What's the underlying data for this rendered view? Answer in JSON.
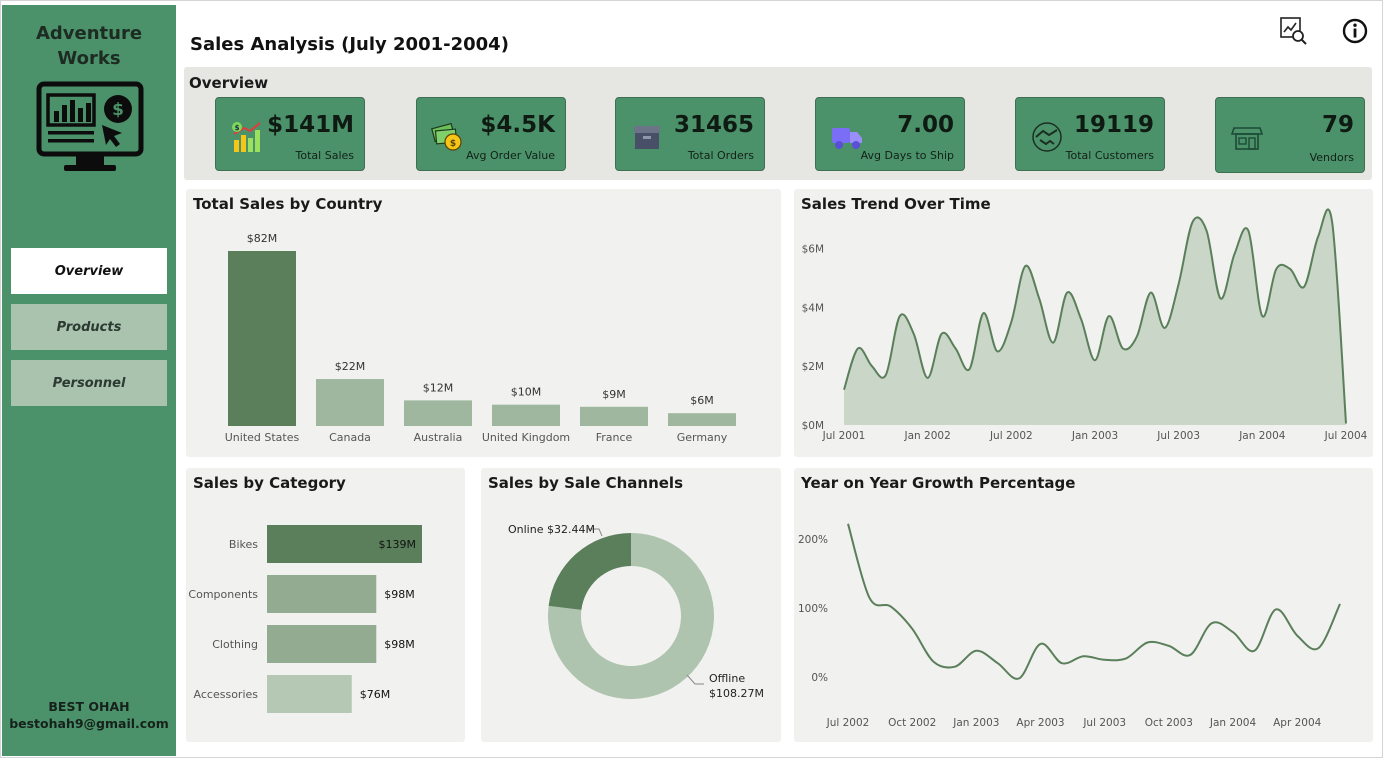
{
  "sidebar": {
    "brand_line1": "Adventure",
    "brand_line2": "Works",
    "nav": [
      {
        "label": "Overview",
        "active": true
      },
      {
        "label": "Products",
        "active": false
      },
      {
        "label": "Personnel",
        "active": false
      }
    ],
    "author_name": "BEST OHAH",
    "author_email": "bestohah9@gmail.com"
  },
  "header": {
    "title": "Sales Analysis (July 2001-2004)",
    "icons": [
      "analytics-search-icon",
      "info-icon"
    ]
  },
  "overview": {
    "title": "Overview",
    "kpis": [
      {
        "value": "$141M",
        "label": "Total Sales",
        "icon": "sales-growth-icon"
      },
      {
        "value": "$4.5K",
        "label": "Avg Order Value",
        "icon": "money-coins-icon"
      },
      {
        "value": "31465",
        "label": "Total Orders",
        "icon": "box-icon"
      },
      {
        "value": "7.00",
        "label": "Avg Days to Ship",
        "icon": "truck-icon"
      },
      {
        "value": "19119",
        "label": "Total Customers",
        "icon": "handshake-icon"
      },
      {
        "value": "79",
        "label": "Vendors",
        "icon": "store-icon"
      }
    ]
  },
  "colors": {
    "sidebar": "#4b926a",
    "accent_dark": "#5a7f5a",
    "accent_light": "#9eb79e",
    "area_fill": "#c9d6c8",
    "panel_bg": "#f1f1ef"
  },
  "chart_data": [
    {
      "type": "bar",
      "title": "Total Sales by Country",
      "categories": [
        "United States",
        "Canada",
        "Australia",
        "United Kingdom",
        "France",
        "Germany"
      ],
      "values": [
        82,
        22,
        12,
        10,
        9,
        6
      ],
      "data_labels": [
        "$82M",
        "$22M",
        "$12M",
        "$10M",
        "$9M",
        "$6M"
      ],
      "highlight_index": 0,
      "ylim": [
        0,
        82
      ]
    },
    {
      "type": "area",
      "title": "Sales Trend Over Time",
      "x_ticks": [
        "Jul 2001",
        "Jan 2002",
        "Jul 2002",
        "Jan 2003",
        "Jul 2003",
        "Jan 2004",
        "Jul 2004"
      ],
      "y_ticks": [
        "$0M",
        "$2M",
        "$4M",
        "$6M"
      ],
      "ylim": [
        0,
        7
      ],
      "y_unit": "$M",
      "x": [
        "Jul 2001",
        "Aug 2001",
        "Sep 2001",
        "Oct 2001",
        "Nov 2001",
        "Dec 2001",
        "Jan 2002",
        "Feb 2002",
        "Mar 2002",
        "Apr 2002",
        "May 2002",
        "Jun 2002",
        "Jul 2002",
        "Aug 2002",
        "Sep 2002",
        "Oct 2002",
        "Nov 2002",
        "Dec 2002",
        "Jan 2003",
        "Feb 2003",
        "Mar 2003",
        "Apr 2003",
        "May 2003",
        "Jun 2003",
        "Jul 2003",
        "Aug 2003",
        "Sep 2003",
        "Oct 2003",
        "Nov 2003",
        "Dec 2003",
        "Jan 2004",
        "Feb 2004",
        "Mar 2004",
        "Apr 2004",
        "May 2004",
        "Jun 2004",
        "Jul 2004"
      ],
      "values": [
        1.2,
        2.6,
        2.0,
        1.7,
        3.7,
        3.1,
        1.6,
        3.1,
        2.6,
        1.9,
        3.8,
        2.5,
        3.5,
        5.4,
        4.3,
        2.8,
        4.5,
        3.6,
        2.2,
        3.7,
        2.6,
        3.0,
        4.5,
        3.3,
        4.8,
        6.9,
        6.6,
        4.3,
        5.8,
        6.6,
        3.7,
        5.3,
        5.3,
        4.7,
        6.4,
        6.9,
        0.05
      ]
    },
    {
      "type": "bar",
      "orientation": "horizontal",
      "title": "Sales by Category",
      "categories": [
        "Bikes",
        "Components",
        "Clothing",
        "Accessories"
      ],
      "values": [
        139,
        98,
        98,
        76
      ],
      "data_labels": [
        "$139M",
        "$98M",
        "$98M",
        "$76M"
      ],
      "xlim": [
        0,
        139
      ]
    },
    {
      "type": "pie",
      "donut": true,
      "title": "Sales by Sale Channels",
      "series": [
        {
          "name": "Online",
          "value": 32.44,
          "label": "Online $32.44M"
        },
        {
          "name": "Offline",
          "value": 108.27,
          "label_line1": "Offline",
          "label_line2": "$108.27M"
        }
      ]
    },
    {
      "type": "line",
      "title": "Year on Year Growth Percentage",
      "x_ticks": [
        "Jul 2002",
        "Oct 2002",
        "Jan 2003",
        "Apr 2003",
        "Jul 2003",
        "Oct 2003",
        "Jan 2004",
        "Apr 2004"
      ],
      "y_ticks": [
        "0%",
        "100%",
        "200%"
      ],
      "ylim": [
        -20,
        240
      ],
      "y_unit": "%",
      "x": [
        "Jul 2002",
        "Aug 2002",
        "Sep 2002",
        "Oct 2002",
        "Nov 2002",
        "Dec 2002",
        "Jan 2003",
        "Feb 2003",
        "Mar 2003",
        "Apr 2003",
        "May 2003",
        "Jun 2003",
        "Jul 2003",
        "Aug 2003",
        "Sep 2003",
        "Oct 2003",
        "Nov 2003",
        "Dec 2003",
        "Jan 2004",
        "Feb 2004",
        "Mar 2004",
        "Apr 2004",
        "May 2004",
        "Jun 2004"
      ],
      "values": [
        222,
        115,
        102,
        70,
        22,
        15,
        38,
        20,
        -2,
        48,
        20,
        30,
        25,
        27,
        50,
        45,
        32,
        78,
        65,
        38,
        98,
        60,
        42,
        106
      ]
    }
  ]
}
